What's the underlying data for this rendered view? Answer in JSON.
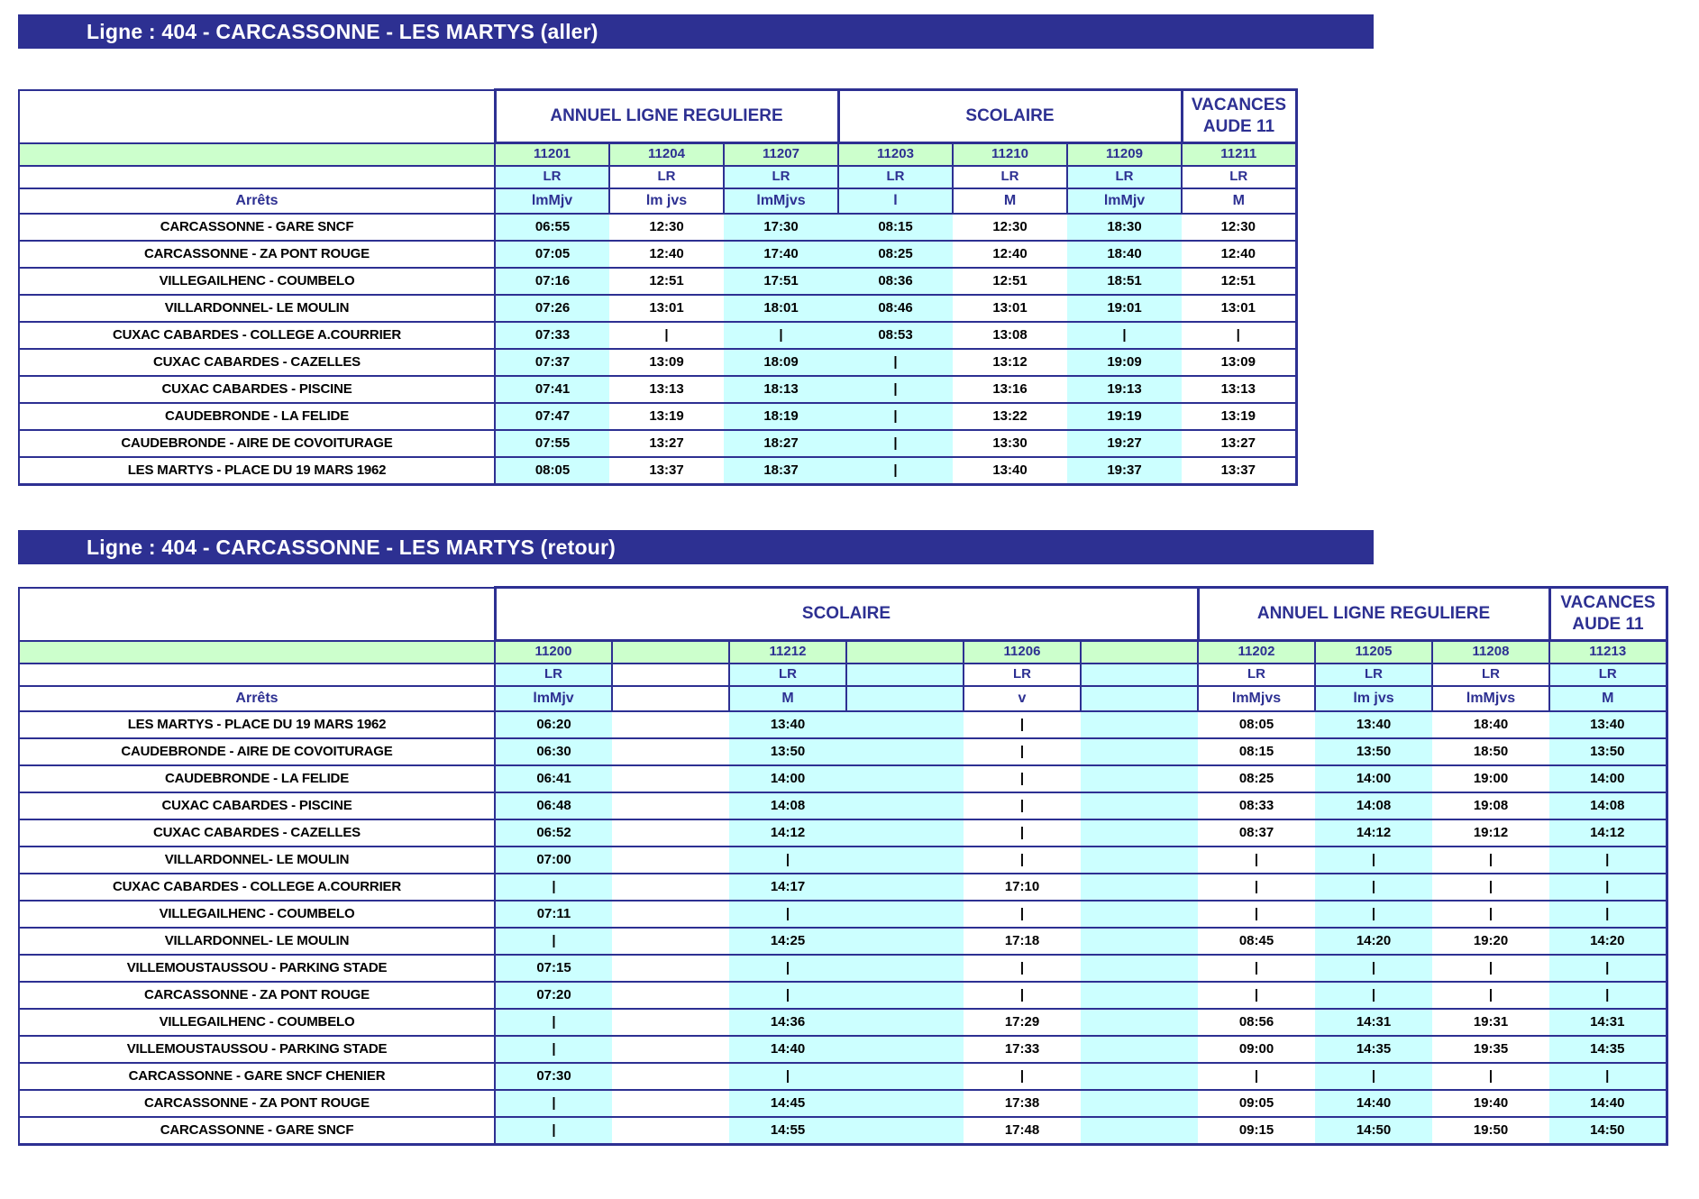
{
  "titles": {
    "aller": "Ligne : 404 - CARCASSONNE - LES MARTYS (aller)",
    "retour": "Ligne : 404 - CARCASSONNE - LES MARTYS (retour)"
  },
  "colors": {
    "navy": "#2d3092",
    "pale_green": "#ccffcc",
    "pale_cyan": "#ccffff",
    "white": "#ffffff",
    "title_text": "#ffffff",
    "stop_text": "#000000"
  },
  "tables": [
    {
      "id": "aller",
      "stops_header": "Arrêts",
      "groups": [
        {
          "label": "ANNUEL LIGNE REGULIERE",
          "span": 3
        },
        {
          "label": "SCOLAIRE",
          "span": 3
        },
        {
          "label": "VACANCES AUDE 11",
          "span": 1
        }
      ],
      "columns": [
        {
          "service": "11201",
          "network": "LR",
          "days": "lmMjv",
          "shade": "cyan"
        },
        {
          "service": "11204",
          "network": "LR",
          "days": "lm jvs",
          "shade": "white"
        },
        {
          "service": "11207",
          "network": "LR",
          "days": "lmMjvs",
          "shade": "cyan"
        },
        {
          "service": "11203",
          "network": "LR",
          "days": "l",
          "shade": "cyan"
        },
        {
          "service": "11210",
          "network": "LR",
          "days": "M",
          "shade": "white"
        },
        {
          "service": "11209",
          "network": "LR",
          "days": "lmMjv",
          "shade": "cyan"
        },
        {
          "service": "11211",
          "network": "LR",
          "days": "M",
          "shade": "white"
        }
      ],
      "rows": [
        {
          "stop": "CARCASSONNE - GARE SNCF",
          "times": [
            "06:55",
            "12:30",
            "17:30",
            "08:15",
            "12:30",
            "18:30",
            "12:30"
          ]
        },
        {
          "stop": "CARCASSONNE - ZA PONT ROUGE",
          "times": [
            "07:05",
            "12:40",
            "17:40",
            "08:25",
            "12:40",
            "18:40",
            "12:40"
          ]
        },
        {
          "stop": "VILLEGAILHENC - COUMBELO",
          "times": [
            "07:16",
            "12:51",
            "17:51",
            "08:36",
            "12:51",
            "18:51",
            "12:51"
          ]
        },
        {
          "stop": "VILLARDONNEL- LE MOULIN",
          "times": [
            "07:26",
            "13:01",
            "18:01",
            "08:46",
            "13:01",
            "19:01",
            "13:01"
          ]
        },
        {
          "stop": "CUXAC CABARDES - COLLEGE A.COURRIER",
          "times": [
            "07:33",
            "|",
            "|",
            "08:53",
            "13:08",
            "|",
            "|"
          ]
        },
        {
          "stop": "CUXAC CABARDES - CAZELLES",
          "times": [
            "07:37",
            "13:09",
            "18:09",
            "|",
            "13:12",
            "19:09",
            "13:09"
          ]
        },
        {
          "stop": "CUXAC CABARDES - PISCINE",
          "times": [
            "07:41",
            "13:13",
            "18:13",
            "|",
            "13:16",
            "19:13",
            "13:13"
          ]
        },
        {
          "stop": "CAUDEBRONDE - LA FELIDE",
          "times": [
            "07:47",
            "13:19",
            "18:19",
            "|",
            "13:22",
            "19:19",
            "13:19"
          ]
        },
        {
          "stop": "CAUDEBRONDE - AIRE DE COVOITURAGE",
          "times": [
            "07:55",
            "13:27",
            "18:27",
            "|",
            "13:30",
            "19:27",
            "13:27"
          ]
        },
        {
          "stop": "LES MARTYS - PLACE DU 19 MARS 1962",
          "times": [
            "08:05",
            "13:37",
            "18:37",
            "|",
            "13:40",
            "19:37",
            "13:37"
          ]
        }
      ]
    },
    {
      "id": "retour",
      "stops_header": "Arrêts",
      "groups": [
        {
          "label": "SCOLAIRE",
          "span": 6
        },
        {
          "label": "ANNUEL LIGNE REGULIERE",
          "span": 3
        },
        {
          "label": "VACANCES AUDE 11",
          "span": 1
        }
      ],
      "columns": [
        {
          "service": "11200",
          "network": "LR",
          "days": "lmMjv",
          "shade": "cyan"
        },
        {
          "service": "",
          "network": "",
          "days": "",
          "shade": "white"
        },
        {
          "service": "11212",
          "network": "LR",
          "days": "M",
          "shade": "cyan"
        },
        {
          "service": "",
          "network": "",
          "days": "",
          "shade": "cyan"
        },
        {
          "service": "11206",
          "network": "LR",
          "days": "v",
          "shade": "white"
        },
        {
          "service": "",
          "network": "",
          "days": "",
          "shade": "cyan"
        },
        {
          "service": "11202",
          "network": "LR",
          "days": "lmMjvs",
          "shade": "white"
        },
        {
          "service": "11205",
          "network": "LR",
          "days": "lm jvs",
          "shade": "cyan"
        },
        {
          "service": "11208",
          "network": "LR",
          "days": "lmMjvs",
          "shade": "white"
        },
        {
          "service": "11213",
          "network": "LR",
          "days": "M",
          "shade": "cyan"
        }
      ],
      "rows": [
        {
          "stop": "LES MARTYS - PLACE DU 19 MARS 1962",
          "times": [
            "06:20",
            "",
            "13:40",
            "",
            "|",
            "",
            "08:05",
            "13:40",
            "18:40",
            "13:40"
          ]
        },
        {
          "stop": "CAUDEBRONDE - AIRE DE COVOITURAGE",
          "times": [
            "06:30",
            "",
            "13:50",
            "",
            "|",
            "",
            "08:15",
            "13:50",
            "18:50",
            "13:50"
          ]
        },
        {
          "stop": "CAUDEBRONDE - LA FELIDE",
          "times": [
            "06:41",
            "",
            "14:00",
            "",
            "|",
            "",
            "08:25",
            "14:00",
            "19:00",
            "14:00"
          ]
        },
        {
          "stop": "CUXAC CABARDES - PISCINE",
          "times": [
            "06:48",
            "",
            "14:08",
            "",
            "|",
            "",
            "08:33",
            "14:08",
            "19:08",
            "14:08"
          ]
        },
        {
          "stop": "CUXAC CABARDES - CAZELLES",
          "times": [
            "06:52",
            "",
            "14:12",
            "",
            "|",
            "",
            "08:37",
            "14:12",
            "19:12",
            "14:12"
          ]
        },
        {
          "stop": "VILLARDONNEL- LE MOULIN",
          "times": [
            "07:00",
            "",
            "|",
            "",
            "|",
            "",
            "|",
            "|",
            "|",
            "|"
          ]
        },
        {
          "stop": "CUXAC CABARDES - COLLEGE A.COURRIER",
          "times": [
            "|",
            "",
            "14:17",
            "",
            "17:10",
            "",
            "|",
            "|",
            "|",
            "|"
          ]
        },
        {
          "stop": "VILLEGAILHENC - COUMBELO",
          "times": [
            "07:11",
            "",
            "|",
            "",
            "|",
            "",
            "|",
            "|",
            "|",
            "|"
          ]
        },
        {
          "stop": "VILLARDONNEL- LE MOULIN",
          "times": [
            "|",
            "",
            "14:25",
            "",
            "17:18",
            "",
            "08:45",
            "14:20",
            "19:20",
            "14:20"
          ]
        },
        {
          "stop": "VILLEMOUSTAUSSOU - PARKING STADE",
          "times": [
            "07:15",
            "",
            "|",
            "",
            "|",
            "",
            "|",
            "|",
            "|",
            "|"
          ]
        },
        {
          "stop": "CARCASSONNE - ZA PONT ROUGE",
          "times": [
            "07:20",
            "",
            "|",
            "",
            "|",
            "",
            "|",
            "|",
            "|",
            "|"
          ]
        },
        {
          "stop": "VILLEGAILHENC - COUMBELO",
          "times": [
            "|",
            "",
            "14:36",
            "",
            "17:29",
            "",
            "08:56",
            "14:31",
            "19:31",
            "14:31"
          ]
        },
        {
          "stop": "VILLEMOUSTAUSSOU - PARKING STADE",
          "times": [
            "|",
            "",
            "14:40",
            "",
            "17:33",
            "",
            "09:00",
            "14:35",
            "19:35",
            "14:35"
          ]
        },
        {
          "stop": "CARCASSONNE - GARE SNCF CHENIER",
          "times": [
            "07:30",
            "",
            "|",
            "",
            "|",
            "",
            "|",
            "|",
            "|",
            "|"
          ]
        },
        {
          "stop": "CARCASSONNE - ZA PONT ROUGE",
          "times": [
            "|",
            "",
            "14:45",
            "",
            "17:38",
            "",
            "09:05",
            "14:40",
            "19:40",
            "14:40"
          ]
        },
        {
          "stop": "CARCASSONNE - GARE SNCF",
          "times": [
            "|",
            "",
            "14:55",
            "",
            "17:48",
            "",
            "09:15",
            "14:50",
            "19:50",
            "14:50"
          ]
        }
      ]
    }
  ]
}
